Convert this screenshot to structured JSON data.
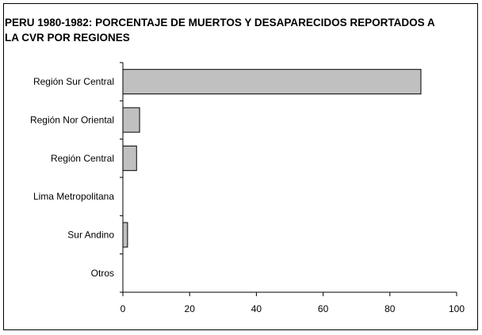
{
  "chart_data": {
    "type": "bar",
    "orientation": "horizontal",
    "title": "PERU 1980-1982: PORCENTAJE DE MUERTOS Y DESAPARECIDOS REPORTADOS A LA CVR POR REGIONES",
    "categories": [
      "Región Sur Central",
      "Región Nor Oriental",
      "Región Central",
      "Lima Metropolitana",
      "Sur Andino",
      "Otros"
    ],
    "values": [
      89.3,
      5.0,
      4.1,
      0.0,
      1.4,
      0.0
    ],
    "xlim": [
      0,
      100
    ],
    "xticks": [
      0,
      20,
      40,
      60,
      80,
      100
    ],
    "xlabel": "",
    "ylabel": "",
    "grid": false,
    "bar_color": "#c0c0c0",
    "bar_edge_color": "#000000"
  }
}
